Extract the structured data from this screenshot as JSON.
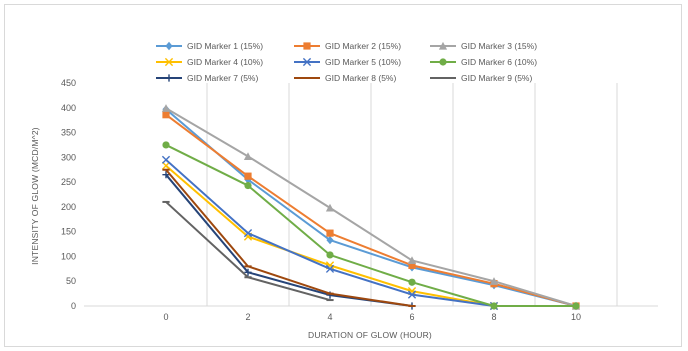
{
  "chart_data": {
    "type": "line",
    "title": "",
    "xlabel": "DURATION OF GLOW (HOUR)",
    "ylabel": "INTENSITY OF GLOW (MCD/M^2)",
    "x": [
      0,
      2,
      4,
      6,
      8,
      10
    ],
    "xlim": [
      -2,
      12
    ],
    "ylim": [
      0,
      450
    ],
    "x_ticks": [
      "0",
      "2",
      "4",
      "6",
      "8",
      "10"
    ],
    "y_ticks": [
      "0",
      "50",
      "100",
      "150",
      "200",
      "250",
      "300",
      "350",
      "400",
      "450"
    ],
    "grid": "vertical",
    "legend_position": "top",
    "series": [
      {
        "name": "GID Marker 1 (15%)",
        "color": "#5b9bd5",
        "marker": "diamond",
        "x": [
          0,
          2,
          4,
          6,
          8,
          10
        ],
        "values": [
          397,
          255,
          133,
          78,
          42,
          0
        ]
      },
      {
        "name": "GID Marker 2 (15%)",
        "color": "#ed7d31",
        "marker": "square",
        "x": [
          0,
          2,
          4,
          6,
          8,
          10
        ],
        "values": [
          386,
          262,
          147,
          82,
          45,
          0
        ]
      },
      {
        "name": "GID Marker 3 (15%)",
        "color": "#a5a5a5",
        "marker": "triangle",
        "x": [
          0,
          2,
          4,
          6,
          8,
          10
        ],
        "values": [
          399,
          302,
          198,
          92,
          50,
          0
        ]
      },
      {
        "name": "GID Marker 4 (10%)",
        "color": "#ffc000",
        "marker": "x",
        "x": [
          0,
          2,
          4,
          6,
          8
        ],
        "values": [
          283,
          140,
          82,
          30,
          0
        ]
      },
      {
        "name": "GID Marker 5 (10%)",
        "color": "#4472c4",
        "marker": "x",
        "x": [
          0,
          2,
          4,
          6,
          8
        ],
        "values": [
          295,
          147,
          75,
          23,
          0
        ]
      },
      {
        "name": "GID Marker 6 (10%)",
        "color": "#70ad47",
        "marker": "circle",
        "x": [
          0,
          2,
          4,
          6,
          8,
          10
        ],
        "values": [
          325,
          243,
          103,
          48,
          0,
          0
        ]
      },
      {
        "name": "GID Marker 7 (5%)",
        "color": "#264478",
        "marker": "plus",
        "x": [
          0,
          2,
          4,
          6
        ],
        "values": [
          265,
          68,
          22,
          0
        ]
      },
      {
        "name": "GID Marker 8 (5%)",
        "color": "#9e480e",
        "marker": "dash",
        "x": [
          0,
          2,
          4,
          6
        ],
        "values": [
          275,
          80,
          25,
          0
        ]
      },
      {
        "name": "GID Marker 9 (5%)",
        "color": "#636363",
        "marker": "dash",
        "x": [
          0,
          2,
          4
        ],
        "values": [
          210,
          58,
          12
        ]
      }
    ]
  }
}
